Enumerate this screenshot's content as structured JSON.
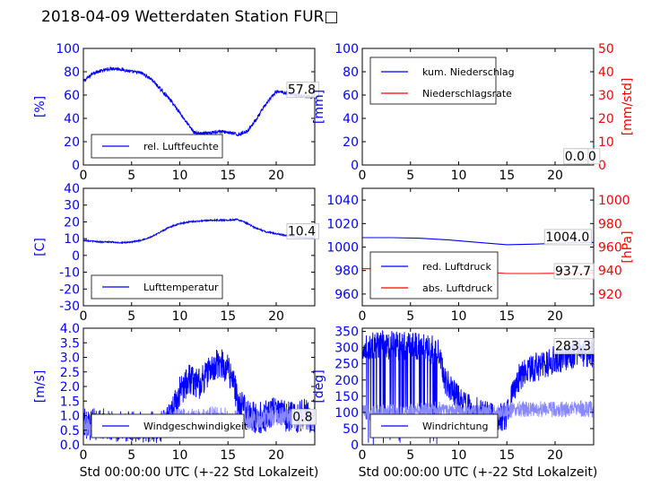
{
  "suptitle": "2018-04-09 Wetterdaten Station FUR□",
  "colors": {
    "primary": "#0000ff",
    "secondary": "#ff0000",
    "thin_wind": "#8888ff",
    "axis": "#000000"
  },
  "chart_data": [
    {
      "id": "feuchte",
      "type": "line",
      "xlabel": "",
      "ylabel": "[%]",
      "ylim": [
        0,
        100
      ],
      "yticks": [
        0,
        20,
        40,
        60,
        80,
        100
      ],
      "xlim": [
        0,
        24
      ],
      "xticks": [
        0,
        5,
        10,
        15,
        20
      ],
      "legend": {
        "placement": "lower-left",
        "entries": [
          {
            "label": "rel. Luftfeuchte",
            "color": "#0000ff"
          }
        ]
      },
      "annotations": [
        {
          "text": "57.8",
          "x": 21.2,
          "y": 61
        }
      ],
      "series": [
        {
          "name": "rel. Luftfeuchte",
          "axis": "left",
          "color": "#0000ff",
          "noise": 1.5,
          "x": [
            0,
            0.5,
            1,
            2,
            3,
            4,
            5,
            6,
            7,
            8,
            9,
            10,
            11,
            11.5,
            12,
            13,
            14,
            15,
            16,
            17,
            18,
            19,
            20,
            21,
            22,
            23,
            24
          ],
          "y": [
            72,
            75,
            79,
            81,
            83,
            82,
            80,
            79,
            74,
            65,
            56,
            45,
            33,
            28,
            27,
            27,
            29,
            28,
            26,
            29,
            40,
            53,
            63,
            62,
            60,
            59,
            58
          ]
        }
      ]
    },
    {
      "id": "niederschlag",
      "type": "line",
      "xlabel": "",
      "ylabel": "[mm]",
      "ylim": [
        0,
        100
      ],
      "yticks": [
        0,
        20,
        40,
        60,
        80,
        100
      ],
      "y2label": "[mm/std]",
      "y2lim": [
        0,
        50
      ],
      "y2ticks": [
        0,
        10,
        20,
        30,
        40,
        50
      ],
      "xlim": [
        0,
        24
      ],
      "xticks": [
        0,
        5,
        10,
        15,
        20
      ],
      "legend": {
        "placement": "upper-left",
        "entries": [
          {
            "label": "kum. Niederschlag",
            "color": "#0000ff"
          },
          {
            "label": "Niederschlagsrate",
            "color": "#ff0000"
          }
        ]
      },
      "annotations": [
        {
          "text": "0.0",
          "x": 22.2,
          "y": 4
        },
        {
          "text": "0.0",
          "x": 21.0,
          "y": 4
        }
      ],
      "series": [
        {
          "name": "kum. Niederschlag",
          "axis": "left",
          "color": "#0000ff",
          "x": [
            0,
            24
          ],
          "y": [
            0,
            0
          ]
        },
        {
          "name": "Niederschlagsrate",
          "axis": "right",
          "color": "#ff0000",
          "x": [
            0,
            24
          ],
          "y": [
            0,
            0
          ]
        }
      ]
    },
    {
      "id": "temperatur",
      "type": "line",
      "xlabel": "",
      "ylabel": "[C]",
      "ylim": [
        -30,
        40
      ],
      "yticks": [
        -30,
        -20,
        -10,
        0,
        10,
        20,
        30,
        40
      ],
      "xlim": [
        0,
        24
      ],
      "xticks": [
        0,
        5,
        10,
        15,
        20
      ],
      "legend": {
        "placement": "lower-left",
        "entries": [
          {
            "label": "Lufttemperatur",
            "color": "#0000ff"
          }
        ]
      },
      "annotations": [
        {
          "text": "10.4",
          "x": 21.2,
          "y": 12
        }
      ],
      "series": [
        {
          "name": "Lufttemperatur",
          "axis": "left",
          "color": "#0000ff",
          "noise": 0.4,
          "x": [
            0,
            1,
            2,
            3,
            4,
            5,
            6,
            7,
            8,
            9,
            10,
            11,
            12,
            13,
            14,
            15,
            16,
            17,
            18,
            19,
            20,
            21,
            22,
            23,
            24
          ],
          "y": [
            9,
            8.5,
            8,
            8,
            7.5,
            8,
            9,
            11,
            14,
            17,
            19,
            20,
            20.5,
            21,
            21,
            21,
            21.5,
            19,
            16,
            14,
            13,
            12,
            11,
            10.5,
            10.4
          ]
        }
      ]
    },
    {
      "id": "luftdruck",
      "type": "line",
      "xlabel": "",
      "ylabel": "",
      "ylim": [
        950,
        1050
      ],
      "yticks": [
        960,
        980,
        1000,
        1020,
        1040
      ],
      "y2label": "[hPa]",
      "y2lim": [
        910,
        1010
      ],
      "y2ticks": [
        920,
        940,
        960,
        980,
        1000
      ],
      "xlim": [
        0,
        24
      ],
      "xticks": [
        0,
        5,
        10,
        15,
        20
      ],
      "legend": {
        "placement": "lower-left",
        "entries": [
          {
            "label": "red. Luftdruck",
            "color": "#0000ff"
          },
          {
            "label": "abs. Luftdruck",
            "color": "#ff0000"
          }
        ]
      },
      "annotations": [
        {
          "text": "1004.0",
          "x": 19.0,
          "y": 1005
        },
        {
          "text": "937.7",
          "x": 20.0,
          "y": 976
        }
      ],
      "series": [
        {
          "name": "red. Luftdruck",
          "axis": "left",
          "color": "#0000ff",
          "x": [
            0,
            3,
            6,
            9,
            12,
            15,
            18,
            21,
            24
          ],
          "y": [
            1008,
            1008,
            1007.5,
            1006,
            1004,
            1002,
            1002.5,
            1003.5,
            1004
          ]
        },
        {
          "name": "abs. Luftdruck",
          "axis": "right",
          "color": "#ff0000",
          "x": [
            0,
            3,
            6,
            9,
            12,
            15,
            18,
            21,
            24
          ],
          "y": [
            941.5,
            941.5,
            941,
            940,
            939,
            937.5,
            937.5,
            937.7,
            937.7
          ]
        }
      ]
    },
    {
      "id": "wind",
      "type": "line",
      "xlabel": "Std 00:00:00 UTC (+-22 Std Lokalzeit)",
      "ylabel": "[m/s]",
      "ylim": [
        0,
        4
      ],
      "yticks": [
        0.0,
        0.5,
        1.0,
        1.5,
        2.0,
        2.5,
        3.0,
        3.5,
        4.0
      ],
      "ytick_decimals": 1,
      "xlim": [
        0,
        24
      ],
      "xticks": [
        0,
        5,
        10,
        15,
        20
      ],
      "legend": {
        "placement": "lower-left",
        "entries": [
          {
            "label": "Windgeschwindigkeit",
            "color": "#0000ff"
          }
        ]
      },
      "annotations": [
        {
          "text": "0.8",
          "x": 21.7,
          "y": 0.82
        }
      ],
      "series": [
        {
          "name": "Windgeschwindigkeit",
          "axis": "left",
          "color": "#0000ff",
          "noise": 0.55,
          "x": [
            0,
            2,
            4,
            6,
            8,
            9,
            10,
            11,
            12,
            13,
            14,
            15,
            15.5,
            16,
            17,
            18,
            19,
            20,
            21,
            22,
            23,
            24
          ],
          "y": [
            0.7,
            0.7,
            0.6,
            0.6,
            0.6,
            0.9,
            1.8,
            2.3,
            2.1,
            2.5,
            2.8,
            2.6,
            2.3,
            1.4,
            1.1,
            0.9,
            1.0,
            1.2,
            1.0,
            0.9,
            1.1,
            0.8
          ]
        },
        {
          "name": "",
          "axis": "left",
          "color": "#8888ff",
          "noise": 0.35,
          "x": [
            0,
            3,
            6,
            8,
            9,
            10,
            12,
            14,
            16,
            18,
            20,
            22,
            24
          ],
          "y": [
            0.6,
            0.6,
            0.6,
            0.7,
            0.9,
            0.9,
            0.9,
            1.0,
            0.8,
            0.9,
            1.0,
            0.9,
            0.8
          ]
        }
      ]
    },
    {
      "id": "windrichtung",
      "type": "line",
      "xlabel": "Std 00:00:00 UTC (+-22 Std Lokalzeit)",
      "ylabel": "[deg]",
      "ylim": [
        0,
        360
      ],
      "yticks": [
        0,
        50,
        100,
        150,
        200,
        250,
        300,
        350
      ],
      "xlim": [
        0,
        24
      ],
      "xticks": [
        0,
        5,
        10,
        15,
        20
      ],
      "legend": {
        "placement": "lower-left",
        "entries": [
          {
            "label": "Windrichtung",
            "color": "#0000ff"
          }
        ]
      },
      "annotations": [
        {
          "text": "283.3",
          "x": 20.0,
          "y": 292
        }
      ],
      "series": [
        {
          "name": "Windrichtung",
          "axis": "left",
          "color": "#0000ff",
          "noise": 45,
          "dips": 0.22,
          "dip_range": [
            0,
            8
          ],
          "x": [
            0,
            2,
            4,
            6,
            8,
            8.5,
            9,
            10,
            11,
            12,
            13,
            14,
            15,
            15.5,
            16,
            17,
            18,
            19,
            20,
            21,
            22,
            23,
            24
          ],
          "y": [
            300,
            310,
            305,
            300,
            290,
            200,
            180,
            140,
            120,
            100,
            90,
            80,
            90,
            150,
            200,
            230,
            240,
            250,
            265,
            270,
            280,
            285,
            283
          ]
        },
        {
          "name": "",
          "axis": "left",
          "color": "#8888ff",
          "noise": 25,
          "x": [
            0,
            4,
            8,
            10,
            12,
            14,
            16
          ],
          "y": [
            100,
            100,
            110,
            100,
            100,
            100,
            110
          ]
        }
      ]
    }
  ]
}
